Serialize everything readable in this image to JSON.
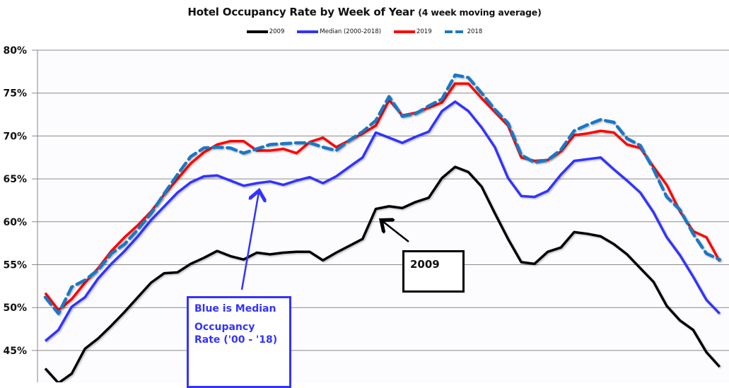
{
  "chart_data": {
    "type": "line",
    "title": "Hotel Occupancy Rate by  Week of Year",
    "subtitle": "(4 week moving average)",
    "xlabel": "",
    "ylabel": "",
    "ylim": [
      43,
      80
    ],
    "yticks": [
      "45%",
      "50%",
      "55%",
      "60%",
      "65%",
      "70%",
      "75%",
      "80%"
    ],
    "grid": true,
    "legend_position": "top",
    "x": [
      1,
      2,
      3,
      4,
      5,
      6,
      7,
      8,
      9,
      10,
      11,
      12,
      13,
      14,
      15,
      16,
      17,
      18,
      19,
      20,
      21,
      22,
      23,
      24,
      25,
      26,
      27,
      28,
      29,
      30,
      31,
      32,
      33,
      34,
      35,
      36,
      37,
      38,
      39,
      40,
      41,
      42,
      43,
      44,
      45,
      46,
      47,
      48,
      49,
      50,
      51,
      52
    ],
    "series": [
      {
        "name": "2009",
        "color": "#000000",
        "style": "solid",
        "values": [
          42.9,
          41.2,
          42.3,
          45.2,
          46.4,
          47.9,
          49.5,
          51.2,
          52.9,
          54.0,
          54.1,
          55.1,
          55.8,
          56.6,
          56.0,
          55.6,
          56.4,
          56.2,
          56.4,
          56.5,
          56.5,
          55.5,
          56.4,
          57.2,
          58.0,
          61.5,
          61.8,
          61.6,
          62.3,
          62.8,
          65.1,
          66.4,
          65.8,
          64.1,
          61.0,
          58.0,
          55.3,
          55.1,
          56.5,
          57.0,
          58.8,
          58.6,
          58.3,
          57.4,
          56.2,
          54.6,
          53.0,
          50.2,
          48.5,
          47.4,
          44.8,
          43.1
        ]
      },
      {
        "name": "Median (2000-2018)",
        "color": "#3333ff",
        "style": "solid",
        "values": [
          46.1,
          47.4,
          50.1,
          51.2,
          53.4,
          55.1,
          56.6,
          58.3,
          60.2,
          61.8,
          63.4,
          64.6,
          65.3,
          65.4,
          64.8,
          64.2,
          64.5,
          64.7,
          64.3,
          64.8,
          65.2,
          64.5,
          65.3,
          66.4,
          67.5,
          70.4,
          69.8,
          69.2,
          69.9,
          70.5,
          72.9,
          74.0,
          72.9,
          71.0,
          68.7,
          65.1,
          63.0,
          62.9,
          63.6,
          65.5,
          67.1,
          67.3,
          67.5,
          66.1,
          64.8,
          63.4,
          61.1,
          58.2,
          56.1,
          53.6,
          50.9,
          49.3
        ]
      },
      {
        "name": "2019",
        "color": "#ff0000",
        "style": "solid",
        "values": [
          51.7,
          49.7,
          51.0,
          52.9,
          54.6,
          56.6,
          58.2,
          59.6,
          61.2,
          63.2,
          65.0,
          66.8,
          68.1,
          69.0,
          69.4,
          69.4,
          68.3,
          68.3,
          68.5,
          68.0,
          69.3,
          69.8,
          68.7,
          69.5,
          70.3,
          71.2,
          74.2,
          72.4,
          72.7,
          73.3,
          73.9,
          76.1,
          76.1,
          74.4,
          72.8,
          71.2,
          67.5,
          67.1,
          67.2,
          68.2,
          70.1,
          70.3,
          70.6,
          70.4,
          69.0,
          68.6,
          66.4,
          64.3,
          61.2,
          58.9,
          58.2,
          55.4
        ]
      },
      {
        "name": "2018",
        "color": "#1f77c4",
        "style": "dashed",
        "values": [
          51.2,
          49.3,
          52.4,
          53.2,
          54.4,
          56.3,
          57.4,
          59.1,
          61.0,
          63.3,
          65.5,
          67.6,
          68.6,
          68.7,
          68.6,
          68.0,
          68.5,
          69.0,
          69.1,
          69.2,
          69.2,
          68.7,
          68.3,
          69.5,
          70.5,
          71.8,
          74.6,
          72.3,
          72.6,
          73.5,
          74.3,
          77.1,
          76.8,
          75.0,
          73.1,
          71.5,
          67.8,
          66.9,
          67.2,
          68.4,
          70.6,
          71.3,
          71.9,
          71.6,
          69.7,
          68.9,
          66.1,
          62.9,
          61.4,
          58.6,
          56.3,
          55.6
        ]
      }
    ],
    "annotations": [
      {
        "text_lines": [
          "Blue is Median",
          "Occupancy",
          "Rate ('00 - '18)"
        ],
        "color": "#3333ff",
        "arrow_target_week": 17
      },
      {
        "text": "2009",
        "color": "#000000",
        "arrow_target_week": 26
      }
    ]
  },
  "title": {
    "main": "Hotel Occupancy Rate by  Week of Year ",
    "sub": "(4 week moving average)"
  },
  "legend": [
    {
      "label": "2009",
      "color": "#000000",
      "style": "solid"
    },
    {
      "label": "Median (2000-2018)",
      "color": "#3333ff",
      "style": "solid"
    },
    {
      "label": "2019",
      "color": "#ff0000",
      "style": "solid"
    },
    {
      "label": "2018",
      "color": "#1f77c4",
      "style": "dashed"
    }
  ],
  "annotations": {
    "median_box": {
      "line1": "Blue is Median",
      "line2": "Occupancy",
      "line3": "Rate ('00 - '18)"
    },
    "box_2009": {
      "text": "2009"
    }
  }
}
